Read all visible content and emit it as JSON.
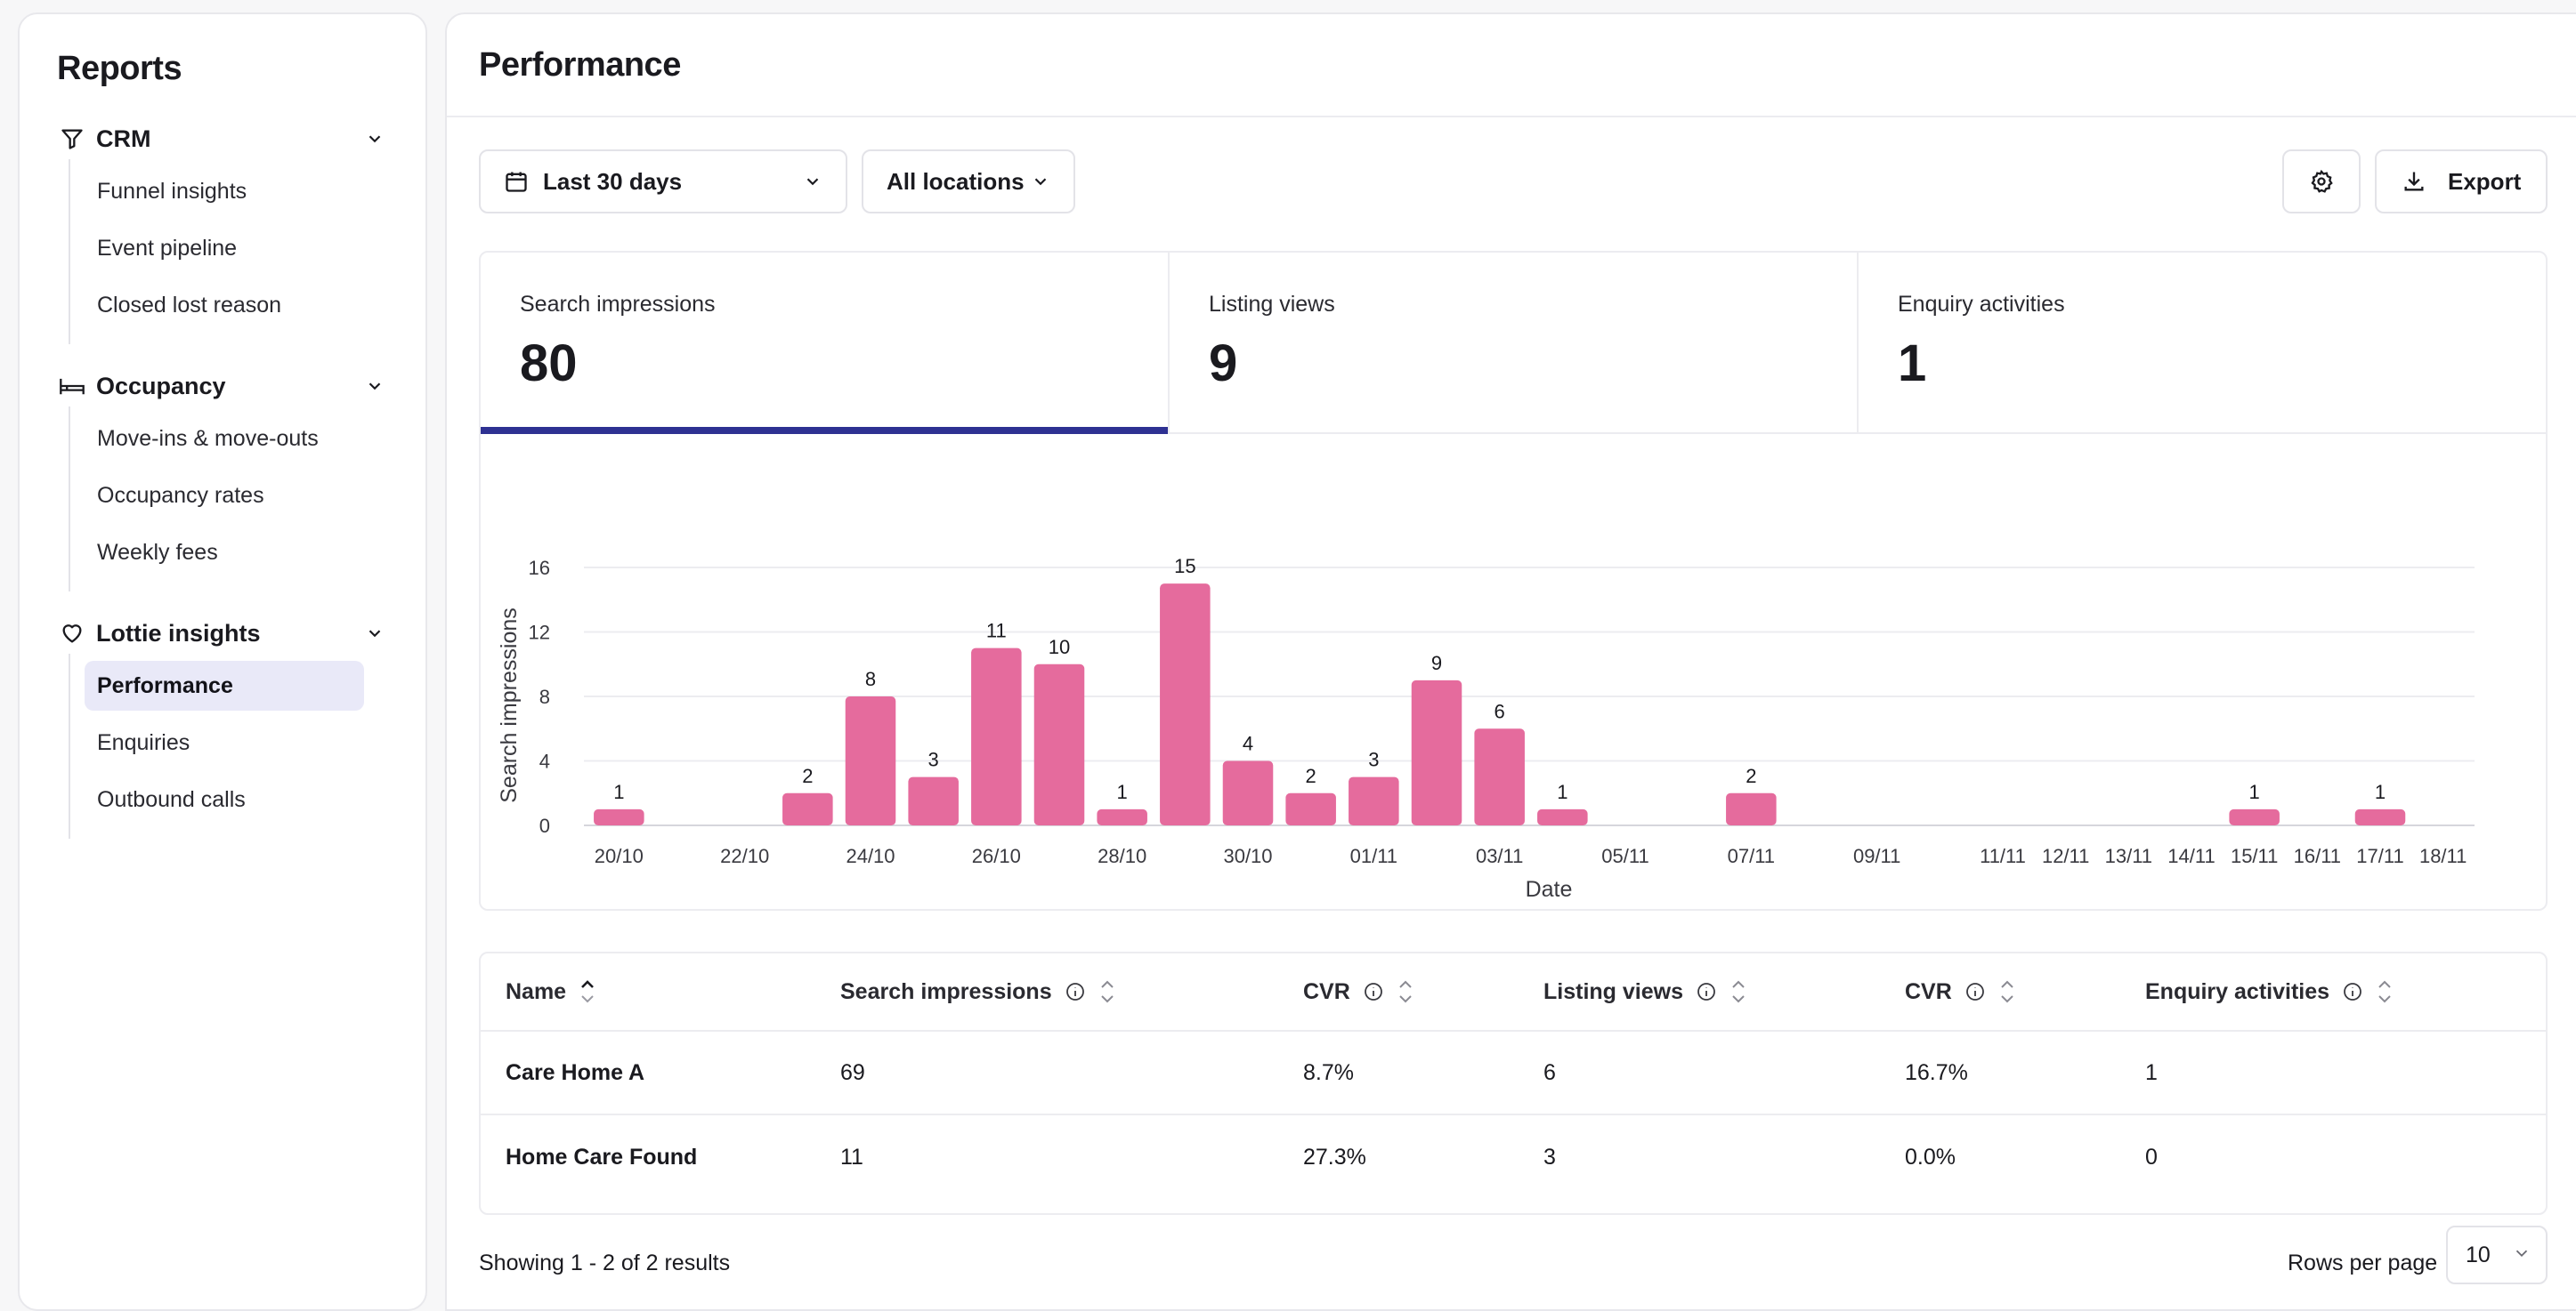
{
  "sidebar": {
    "title": "Reports",
    "groups": [
      {
        "label": "CRM",
        "icon": "filter-icon",
        "items": [
          "Funnel insights",
          "Event pipeline",
          "Closed lost reason"
        ]
      },
      {
        "label": "Occupancy",
        "icon": "bed-icon",
        "items": [
          "Move-ins & move-outs",
          "Occupancy rates",
          "Weekly fees"
        ]
      },
      {
        "label": "Lottie insights",
        "icon": "heart-icon",
        "items": [
          "Performance",
          "Enquiries",
          "Outbound calls"
        ]
      }
    ],
    "active_item": "Performance"
  },
  "header": {
    "title": "Performance"
  },
  "toolbar": {
    "date_range": "Last 30 days",
    "location": "All locations",
    "export_label": "Export"
  },
  "kpis": [
    {
      "label": "Search impressions",
      "value": "80"
    },
    {
      "label": "Listing views",
      "value": "9"
    },
    {
      "label": "Enquiry activities",
      "value": "1"
    }
  ],
  "chart_data": {
    "type": "bar",
    "xlabel": "Date",
    "ylabel": "Search impressions",
    "ylim": [
      0,
      16
    ],
    "yticks": [
      0,
      4,
      8,
      12,
      16
    ],
    "grid": true,
    "bar_color": "#e56b9d",
    "categories": [
      "20/10",
      "21/10",
      "22/10",
      "23/10",
      "24/10",
      "25/10",
      "26/10",
      "27/10",
      "28/10",
      "29/10",
      "30/10",
      "31/10",
      "01/11",
      "02/11",
      "03/11",
      "04/11",
      "05/11",
      "06/11",
      "07/11",
      "08/11",
      "09/11",
      "10/11",
      "11/11",
      "12/11",
      "13/11",
      "14/11",
      "15/11",
      "16/11",
      "17/11",
      "18/11"
    ],
    "tick_labels": [
      "20/10",
      "",
      "22/10",
      "",
      "24/10",
      "",
      "26/10",
      "",
      "28/10",
      "",
      "30/10",
      "",
      "01/11",
      "",
      "03/11",
      "",
      "05/11",
      "",
      "07/11",
      "",
      "09/11",
      "",
      "11/11",
      "12/11",
      "13/11",
      "14/11",
      "15/11",
      "16/11",
      "17/11",
      "18/11"
    ],
    "values": [
      1,
      0,
      0,
      2,
      8,
      3,
      11,
      10,
      1,
      15,
      4,
      2,
      3,
      9,
      6,
      1,
      0,
      0,
      2,
      0,
      0,
      0,
      0,
      0,
      0,
      0,
      1,
      0,
      1,
      0
    ]
  },
  "table": {
    "columns": [
      "Name",
      "Search impressions",
      "CVR",
      "Listing views",
      "CVR",
      "Enquiry activities"
    ],
    "rows": [
      [
        "Care Home A",
        "69",
        "8.7%",
        "6",
        "16.7%",
        "1"
      ],
      [
        "Home Care Found",
        "11",
        "27.3%",
        "3",
        "0.0%",
        "0"
      ]
    ]
  },
  "pagination": {
    "summary": "Showing 1 - 2 of 2 results",
    "rows_per_page_label": "Rows per page",
    "rows_per_page": "10"
  },
  "colors": {
    "accent": "#2e3192",
    "bar": "#e56b9d",
    "active_nav": "#e9e9f8"
  }
}
